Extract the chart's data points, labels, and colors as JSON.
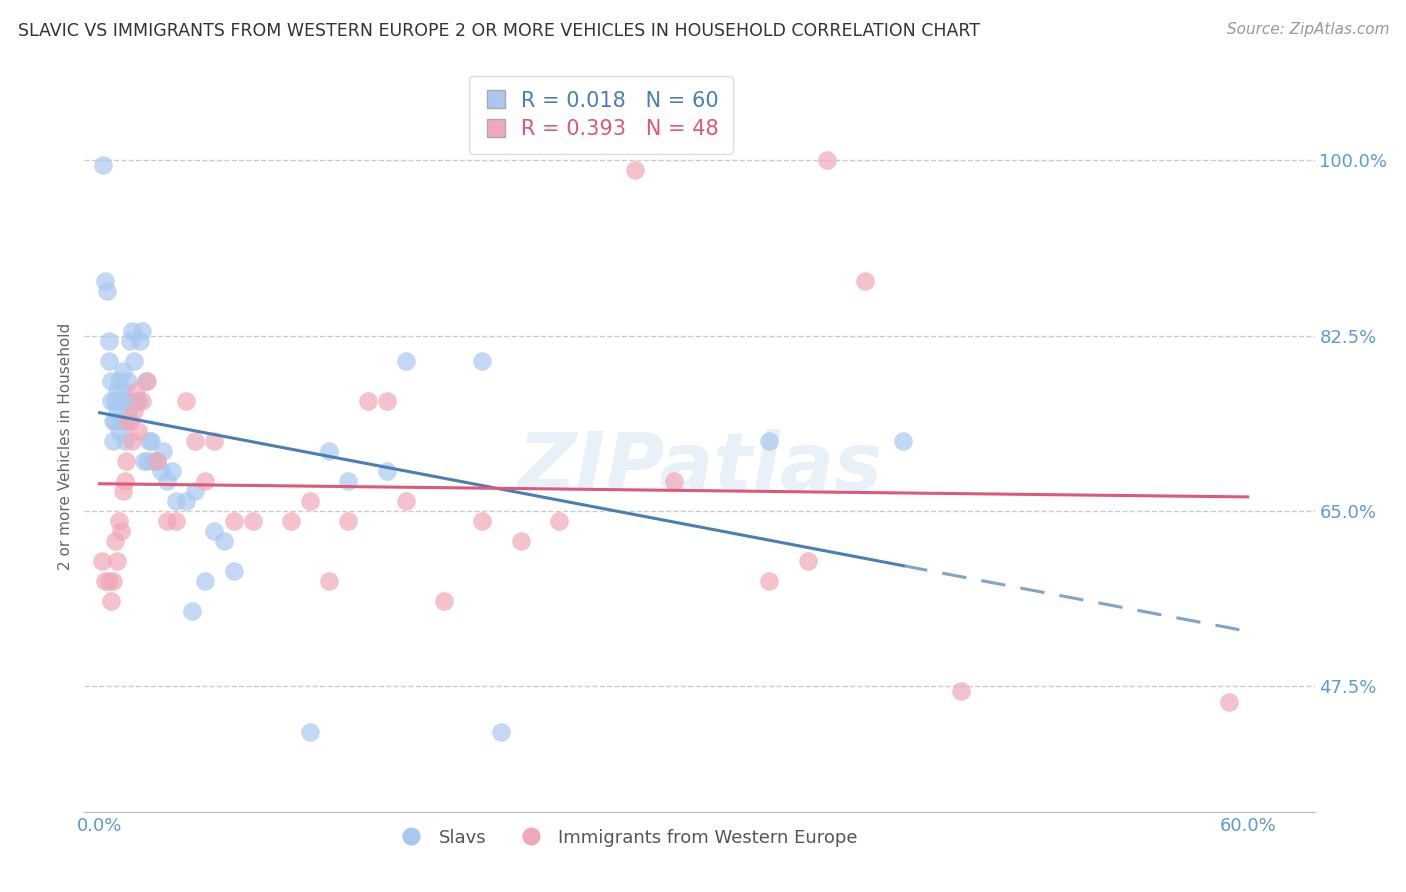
{
  "title": "SLAVIC VS IMMIGRANTS FROM WESTERN EUROPE 2 OR MORE VEHICLES IN HOUSEHOLD CORRELATION CHART",
  "source": "Source: ZipAtlas.com",
  "ylabel": "2 or more Vehicles in Household",
  "watermark": "ZIPatlas",
  "xmin": 0.0,
  "xmax": 0.6,
  "ymin": 0.35,
  "ymax": 1.05,
  "grid_color": "#cccccc",
  "slavs_color": "#a8c8f0",
  "immigrants_color": "#f0a8b8",
  "slavs_line_color": "#4a7fb5",
  "immigrants_line_color": "#e05878",
  "slavs_R": 0.018,
  "slavs_N": 60,
  "immigrants_R": 0.393,
  "immigrants_N": 48,
  "legend_label_slavs": "Slavs",
  "legend_label_immigrants": "Immigrants from Western Europe",
  "axis_label_color": "#5b9bd5",
  "slavs_x": [
    0.002,
    0.003,
    0.004,
    0.005,
    0.005,
    0.006,
    0.006,
    0.007,
    0.007,
    0.008,
    0.008,
    0.009,
    0.009,
    0.01,
    0.01,
    0.011,
    0.011,
    0.012,
    0.012,
    0.013,
    0.013,
    0.014,
    0.014,
    0.015,
    0.015,
    0.016,
    0.017,
    0.018,
    0.019,
    0.02,
    0.021,
    0.022,
    0.023,
    0.024,
    0.025,
    0.026,
    0.027,
    0.028,
    0.03,
    0.032,
    0.033,
    0.035,
    0.038,
    0.04,
    0.045,
    0.048,
    0.05,
    0.055,
    0.06,
    0.065,
    0.07,
    0.11,
    0.12,
    0.13,
    0.15,
    0.16,
    0.2,
    0.21,
    0.35,
    0.42
  ],
  "slavs_y": [
    0.995,
    0.88,
    0.87,
    0.82,
    0.8,
    0.78,
    0.76,
    0.74,
    0.72,
    0.76,
    0.74,
    0.77,
    0.75,
    0.78,
    0.73,
    0.76,
    0.74,
    0.79,
    0.77,
    0.76,
    0.72,
    0.76,
    0.74,
    0.78,
    0.75,
    0.82,
    0.83,
    0.8,
    0.76,
    0.76,
    0.82,
    0.83,
    0.7,
    0.78,
    0.7,
    0.72,
    0.72,
    0.7,
    0.7,
    0.69,
    0.71,
    0.68,
    0.69,
    0.66,
    0.66,
    0.55,
    0.67,
    0.58,
    0.63,
    0.62,
    0.59,
    0.43,
    0.71,
    0.68,
    0.69,
    0.8,
    0.8,
    0.43,
    0.72,
    0.72
  ],
  "immigrants_x": [
    0.001,
    0.003,
    0.005,
    0.006,
    0.007,
    0.008,
    0.009,
    0.01,
    0.011,
    0.012,
    0.013,
    0.014,
    0.015,
    0.016,
    0.017,
    0.018,
    0.019,
    0.02,
    0.022,
    0.025,
    0.03,
    0.035,
    0.04,
    0.045,
    0.05,
    0.055,
    0.06,
    0.07,
    0.08,
    0.1,
    0.11,
    0.12,
    0.13,
    0.14,
    0.15,
    0.16,
    0.18,
    0.2,
    0.22,
    0.24,
    0.28,
    0.3,
    0.35,
    0.37,
    0.38,
    0.4,
    0.45,
    0.59
  ],
  "immigrants_y": [
    0.6,
    0.58,
    0.58,
    0.56,
    0.58,
    0.62,
    0.6,
    0.64,
    0.63,
    0.67,
    0.68,
    0.7,
    0.74,
    0.74,
    0.72,
    0.75,
    0.77,
    0.73,
    0.76,
    0.78,
    0.7,
    0.64,
    0.64,
    0.76,
    0.72,
    0.68,
    0.72,
    0.64,
    0.64,
    0.64,
    0.66,
    0.58,
    0.64,
    0.76,
    0.76,
    0.66,
    0.56,
    0.64,
    0.62,
    0.64,
    0.99,
    0.68,
    0.58,
    0.6,
    1.0,
    0.88,
    0.47,
    0.46
  ]
}
